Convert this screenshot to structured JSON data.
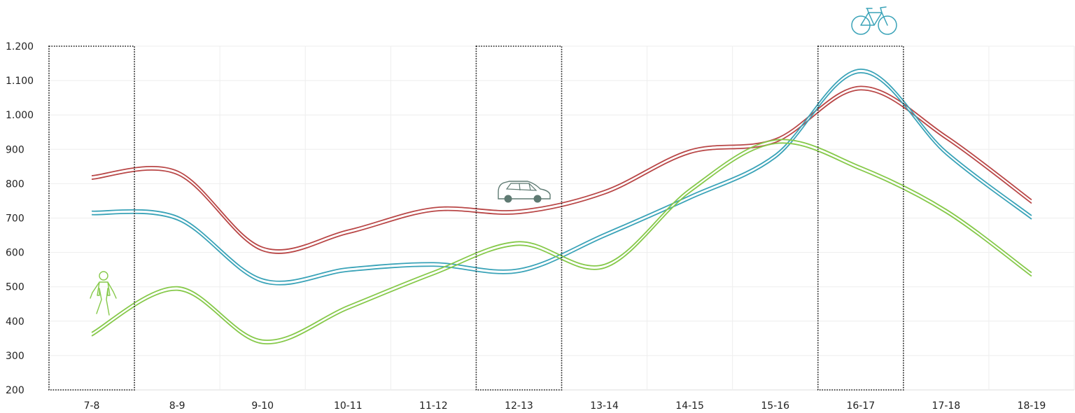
{
  "chart_data": {
    "type": "line",
    "categories": [
      "7-8",
      "8-9",
      "9-10",
      "10-11",
      "11-12",
      "12-13",
      "13-14",
      "14-15",
      "15-16",
      "16-17",
      "17-18",
      "18-19"
    ],
    "ylim": [
      200,
      1200
    ],
    "y_ticks": [
      200,
      300,
      400,
      500,
      600,
      700,
      800,
      900,
      1000,
      1100,
      1200
    ],
    "y_tick_labels": [
      "200",
      "300",
      "400",
      "500",
      "600",
      "700",
      "800",
      "900",
      "1.000",
      "1.100",
      "1.200"
    ],
    "grid": true,
    "series": [
      {
        "icon": "car-icon",
        "color": "#b94747",
        "values": [
          818,
          832,
          610,
          660,
          725,
          718,
          775,
          893,
          925,
          1078,
          935,
          748
        ]
      },
      {
        "icon": "bicycle-icon",
        "color": "#3aa3b8",
        "values": [
          715,
          700,
          518,
          550,
          565,
          547,
          650,
          760,
          880,
          1128,
          890,
          702
        ]
      },
      {
        "icon": "pedestrian-icon",
        "color": "#86c94a",
        "values": [
          362,
          495,
          340,
          440,
          540,
          626,
          560,
          780,
          922,
          845,
          720,
          536
        ]
      }
    ],
    "highlighted_categories": [
      "7-8",
      "12-13",
      "16-17"
    ]
  }
}
